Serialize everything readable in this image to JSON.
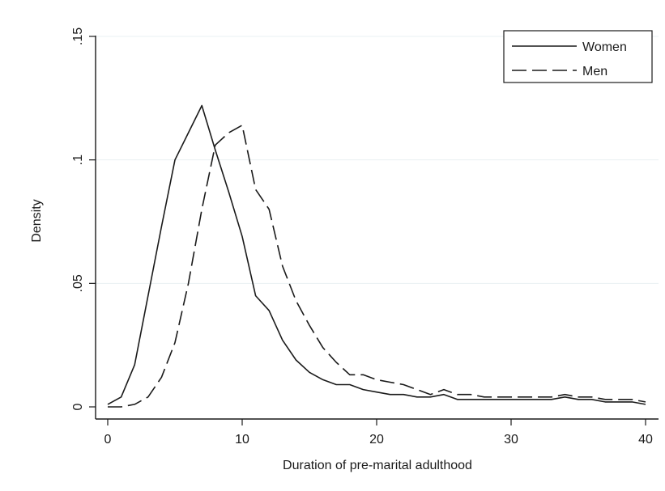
{
  "chart_data": {
    "type": "line",
    "xlabel": "Duration of pre-marital adulthood",
    "ylabel": "Density",
    "xlim": [
      0,
      40
    ],
    "ylim": [
      0,
      0.15
    ],
    "x_ticks": [
      0,
      10,
      20,
      30,
      40
    ],
    "x_tick_labels": [
      "0",
      "10",
      "20",
      "30",
      "40"
    ],
    "y_ticks": [
      0,
      0.05,
      0.1,
      0.15
    ],
    "y_tick_labels": [
      "0",
      ".05",
      ".1",
      ".15"
    ],
    "grid": "horizontal",
    "legend_position": "top-right",
    "series": [
      {
        "name": "Women",
        "style": "solid",
        "color": "#1a1a1a",
        "x": [
          0,
          1,
          2,
          3,
          4,
          5,
          6,
          7,
          8,
          9,
          10,
          11,
          12,
          13,
          14,
          15,
          16,
          17,
          18,
          19,
          20,
          21,
          22,
          23,
          24,
          25,
          26,
          27,
          28,
          29,
          30,
          31,
          32,
          33,
          34,
          35,
          36,
          37,
          38,
          39,
          40
        ],
        "y": [
          0.001,
          0.004,
          0.017,
          0.045,
          0.073,
          0.1,
          0.111,
          0.122,
          0.104,
          0.087,
          0.069,
          0.045,
          0.039,
          0.027,
          0.019,
          0.014,
          0.011,
          0.009,
          0.009,
          0.007,
          0.006,
          0.005,
          0.005,
          0.004,
          0.004,
          0.005,
          0.003,
          0.003,
          0.003,
          0.003,
          0.003,
          0.003,
          0.003,
          0.003,
          0.004,
          0.003,
          0.003,
          0.002,
          0.002,
          0.002,
          0.001
        ]
      },
      {
        "name": "Men",
        "style": "dashed",
        "color": "#1a1a1a",
        "x": [
          0,
          1,
          2,
          3,
          4,
          5,
          6,
          7,
          8,
          9,
          10,
          11,
          12,
          13,
          14,
          15,
          16,
          17,
          18,
          19,
          20,
          21,
          22,
          23,
          24,
          25,
          26,
          27,
          28,
          29,
          30,
          31,
          32,
          33,
          34,
          35,
          36,
          37,
          38,
          39,
          40
        ],
        "y": [
          0.0,
          0.0,
          0.001,
          0.004,
          0.012,
          0.026,
          0.05,
          0.08,
          0.106,
          0.111,
          0.114,
          0.088,
          0.08,
          0.057,
          0.043,
          0.033,
          0.024,
          0.018,
          0.013,
          0.013,
          0.011,
          0.01,
          0.009,
          0.007,
          0.005,
          0.007,
          0.005,
          0.005,
          0.004,
          0.004,
          0.004,
          0.004,
          0.004,
          0.004,
          0.005,
          0.004,
          0.004,
          0.003,
          0.003,
          0.003,
          0.002
        ]
      }
    ]
  }
}
